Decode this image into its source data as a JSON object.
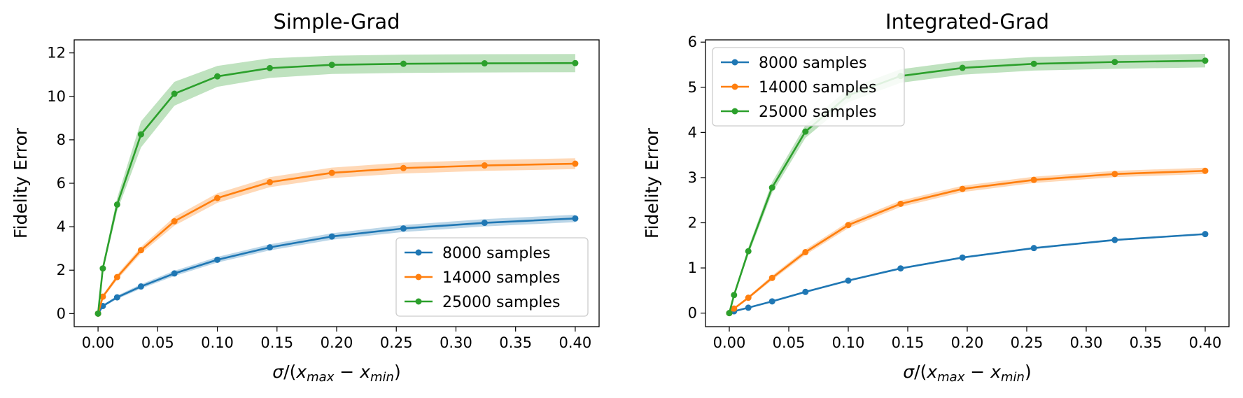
{
  "figure": {
    "background": "#ffffff"
  },
  "colors": {
    "blue": "#1f77b4",
    "orange": "#ff7f0e",
    "green": "#2ca02c"
  },
  "chart_data": [
    {
      "type": "line",
      "title": "Simple-Grad",
      "xlabel": "σ/(x_max − x_min)",
      "ylabel": "Fidelity Error",
      "xlim": [
        -0.02,
        0.42
      ],
      "ylim": [
        -0.6,
        12.6
      ],
      "xticks": [
        0.0,
        0.05,
        0.1,
        0.15,
        0.2,
        0.25,
        0.3,
        0.35,
        0.4
      ],
      "xtick_labels": [
        "0.00",
        "0.05",
        "0.10",
        "0.15",
        "0.20",
        "0.25",
        "0.30",
        "0.35",
        "0.40"
      ],
      "yticks": [
        0,
        2,
        4,
        6,
        8,
        10,
        12
      ],
      "ytick_labels": [
        "0",
        "2",
        "4",
        "6",
        "8",
        "10",
        "12"
      ],
      "x": [
        0.0,
        0.004,
        0.016,
        0.036,
        0.064,
        0.1,
        0.144,
        0.196,
        0.256,
        0.324,
        0.4
      ],
      "legend_position": "lower-right",
      "grid": false,
      "series": [
        {
          "name": "8000 samples",
          "color": "#1f77b4",
          "values": [
            0.0,
            0.35,
            0.75,
            1.25,
            1.85,
            2.48,
            3.05,
            3.55,
            3.92,
            4.18,
            4.38
          ],
          "band": [
            0.0,
            0.05,
            0.08,
            0.1,
            0.12,
            0.13,
            0.14,
            0.15,
            0.16,
            0.17,
            0.17
          ]
        },
        {
          "name": "14000 samples",
          "color": "#ff7f0e",
          "values": [
            0.0,
            0.78,
            1.68,
            2.92,
            4.25,
            5.32,
            6.05,
            6.48,
            6.7,
            6.82,
            6.9
          ],
          "band": [
            0.0,
            0.08,
            0.12,
            0.15,
            0.2,
            0.22,
            0.23,
            0.24,
            0.25,
            0.25,
            0.25
          ]
        },
        {
          "name": "25000 samples",
          "color": "#2ca02c",
          "values": [
            0.0,
            2.08,
            5.02,
            8.25,
            10.12,
            10.92,
            11.3,
            11.45,
            11.5,
            11.52,
            11.53
          ],
          "band": [
            0.0,
            0.15,
            0.3,
            0.6,
            0.55,
            0.48,
            0.45,
            0.42,
            0.42,
            0.42,
            0.42
          ]
        }
      ]
    },
    {
      "type": "line",
      "title": "Integrated-Grad",
      "xlabel": "σ/(x_max − x_min)",
      "ylabel": "Fidelity Error",
      "xlim": [
        -0.02,
        0.42
      ],
      "ylim": [
        -0.3,
        6.05
      ],
      "xticks": [
        0.0,
        0.05,
        0.1,
        0.15,
        0.2,
        0.25,
        0.3,
        0.35,
        0.4
      ],
      "xtick_labels": [
        "0.00",
        "0.05",
        "0.10",
        "0.15",
        "0.20",
        "0.25",
        "0.30",
        "0.35",
        "0.40"
      ],
      "yticks": [
        0,
        1,
        2,
        3,
        4,
        5,
        6
      ],
      "ytick_labels": [
        "0",
        "1",
        "2",
        "3",
        "4",
        "5",
        "6"
      ],
      "x": [
        0.0,
        0.004,
        0.016,
        0.036,
        0.064,
        0.1,
        0.144,
        0.196,
        0.256,
        0.324,
        0.4
      ],
      "legend_position": "upper-left",
      "grid": false,
      "series": [
        {
          "name": "8000 samples",
          "color": "#1f77b4",
          "values": [
            0.0,
            0.04,
            0.12,
            0.26,
            0.47,
            0.72,
            0.99,
            1.23,
            1.44,
            1.62,
            1.75
          ],
          "band": [
            0.0,
            0.01,
            0.01,
            0.02,
            0.02,
            0.02,
            0.02,
            0.02,
            0.02,
            0.02,
            0.02
          ]
        },
        {
          "name": "14000 samples",
          "color": "#ff7f0e",
          "values": [
            0.0,
            0.1,
            0.34,
            0.78,
            1.35,
            1.95,
            2.42,
            2.75,
            2.95,
            3.08,
            3.15
          ],
          "band": [
            0.0,
            0.02,
            0.03,
            0.05,
            0.06,
            0.07,
            0.07,
            0.07,
            0.07,
            0.07,
            0.07
          ]
        },
        {
          "name": "25000 samples",
          "color": "#2ca02c",
          "values": [
            0.0,
            0.4,
            1.37,
            2.78,
            4.02,
            4.82,
            5.25,
            5.43,
            5.52,
            5.56,
            5.59
          ],
          "band": [
            0.0,
            0.05,
            0.08,
            0.12,
            0.14,
            0.15,
            0.15,
            0.15,
            0.15,
            0.15,
            0.15
          ]
        }
      ]
    }
  ]
}
